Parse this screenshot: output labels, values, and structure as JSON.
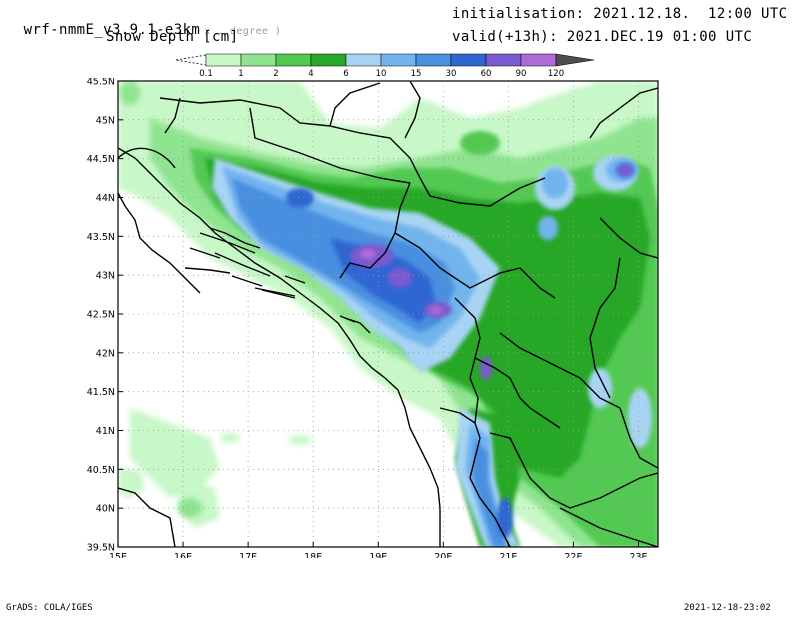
{
  "header": {
    "model": "wrf-nmmE_v3.9.1-e3km",
    "coords": "x . degree )",
    "field": "Snow Depth [cm]",
    "init": "initialisation: 2021.12.18.  12:00 UTC",
    "valid": "valid(+13h): 2021.DEC.19 01:00 UTC"
  },
  "colorbar": {
    "labels": [
      "0.1",
      "1",
      "2",
      "4",
      "6",
      "10",
      "15",
      "30",
      "60",
      "90",
      "120"
    ],
    "colors": [
      "#c8f7c8",
      "#8fe48f",
      "#52c952",
      "#28a728",
      "#a8d4f4",
      "#72b4ee",
      "#4a8fe0",
      "#2f66d2",
      "#7a5acf",
      "#b06ad8",
      "#4d4d4d"
    ]
  },
  "map": {
    "lat_labels": [
      "45.5N",
      "45N",
      "44.5N",
      "44N",
      "43.5N",
      "43N",
      "42.5N",
      "42N",
      "41.5N",
      "41N",
      "40.5N",
      "40N",
      "39.5N"
    ],
    "lon_labels": [
      "15E",
      "16E",
      "17E",
      "18E",
      "19E",
      "20E",
      "21E",
      "22E",
      "23E"
    ],
    "lat_range": [
      39.5,
      45.5
    ],
    "lon_range": [
      15,
      23.3
    ],
    "grid": "dotted"
  },
  "footer": {
    "credit": "GrADS: COLA/IGES",
    "timestamp": "2021-12-18-23:02"
  }
}
